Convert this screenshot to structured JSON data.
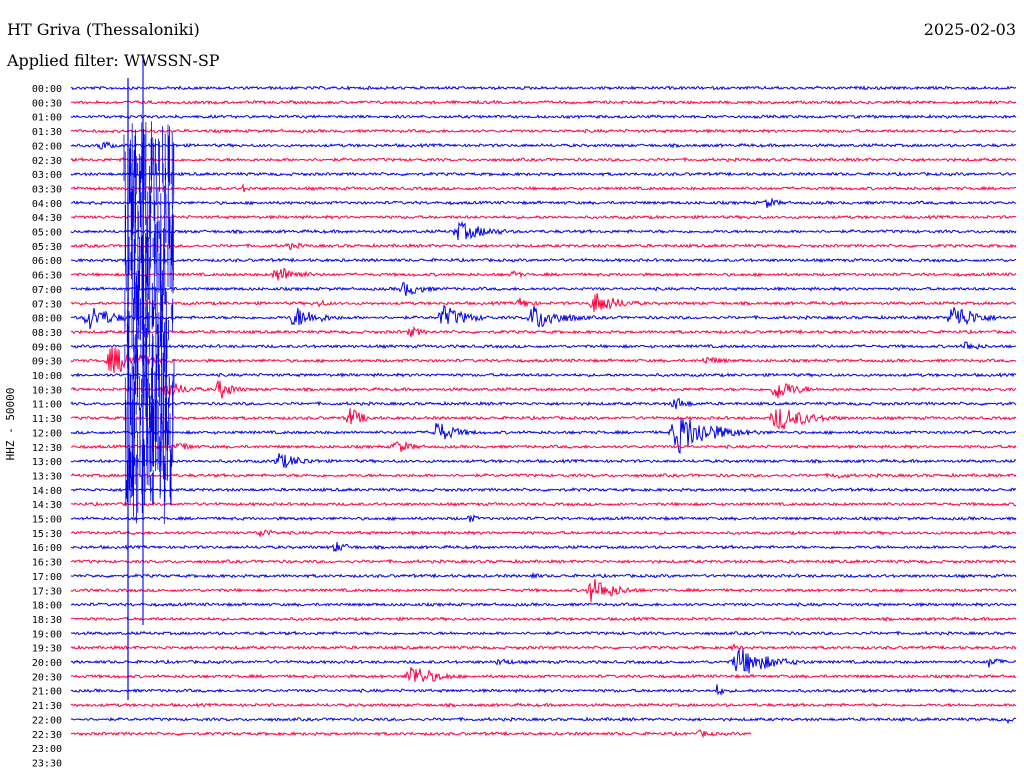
{
  "header": {
    "station": "HT Griva (Thessaloniki)",
    "filter": "Applied filter: WWSSN-SP",
    "date": "2025-02-03"
  },
  "colors": {
    "blue": "#0000ee",
    "red": "#ff0040",
    "text": "#000000"
  },
  "chart_data": {
    "type": "line",
    "title": "HT Griva (Thessaloniki)",
    "ylabel": "HHZ - 50000",
    "row_labels": [
      "00:00",
      "00:30",
      "01:00",
      "01:30",
      "02:00",
      "02:30",
      "03:00",
      "03:30",
      "04:00",
      "04:30",
      "05:00",
      "05:30",
      "06:00",
      "06:30",
      "07:00",
      "07:30",
      "08:00",
      "08:30",
      "09:00",
      "09:30",
      "10:00",
      "10:30",
      "11:00",
      "11:30",
      "12:00",
      "12:30",
      "13:00",
      "13:30",
      "14:00",
      "14:30",
      "15:00",
      "15:30",
      "16:00",
      "16:30",
      "17:00",
      "17:30",
      "18:00",
      "18:30",
      "19:00",
      "19:30",
      "20:00",
      "20:30",
      "21:00",
      "21:30",
      "22:00",
      "22:30",
      "23:00",
      "23:30"
    ],
    "series_colors_cycle": [
      "blue",
      "red"
    ],
    "rows_with_data": 46,
    "last_row_fraction": 0.72
  }
}
